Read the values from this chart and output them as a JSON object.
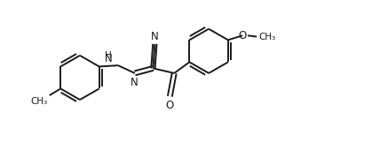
{
  "background_color": "#ffffff",
  "line_color": "#1a1a1a",
  "line_width": 1.4,
  "figsize": [
    4.19,
    1.7
  ],
  "dpi": 100,
  "xlim": [
    0,
    4.19
  ],
  "ylim": [
    0,
    1.7
  ]
}
